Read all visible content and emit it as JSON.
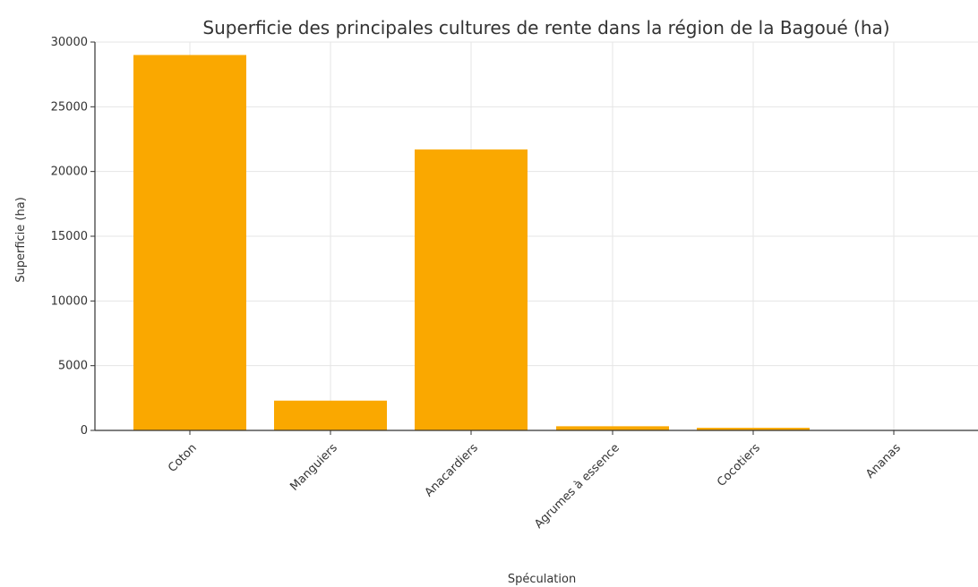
{
  "chart_data": {
    "type": "bar",
    "title": "Superficie des principales cultures de rente dans la région de la Bagoué (ha)",
    "xlabel": "Spéculation",
    "ylabel": "Superficie (ha)",
    "categories": [
      "Coton",
      "Manguiers",
      "Anacardiers",
      "Agrumes à essence",
      "Cocotiers",
      "Ananas"
    ],
    "values": [
      29000,
      2300,
      21700,
      320,
      200,
      10
    ],
    "ylim": [
      0,
      30000
    ],
    "yticks": [
      "0",
      "5000",
      "10000",
      "15000",
      "20000",
      "25000",
      "30000"
    ],
    "grid": true,
    "colors": {
      "bar": "#FAA800",
      "grid": "#e5e5e5",
      "axis": "#333333"
    }
  }
}
